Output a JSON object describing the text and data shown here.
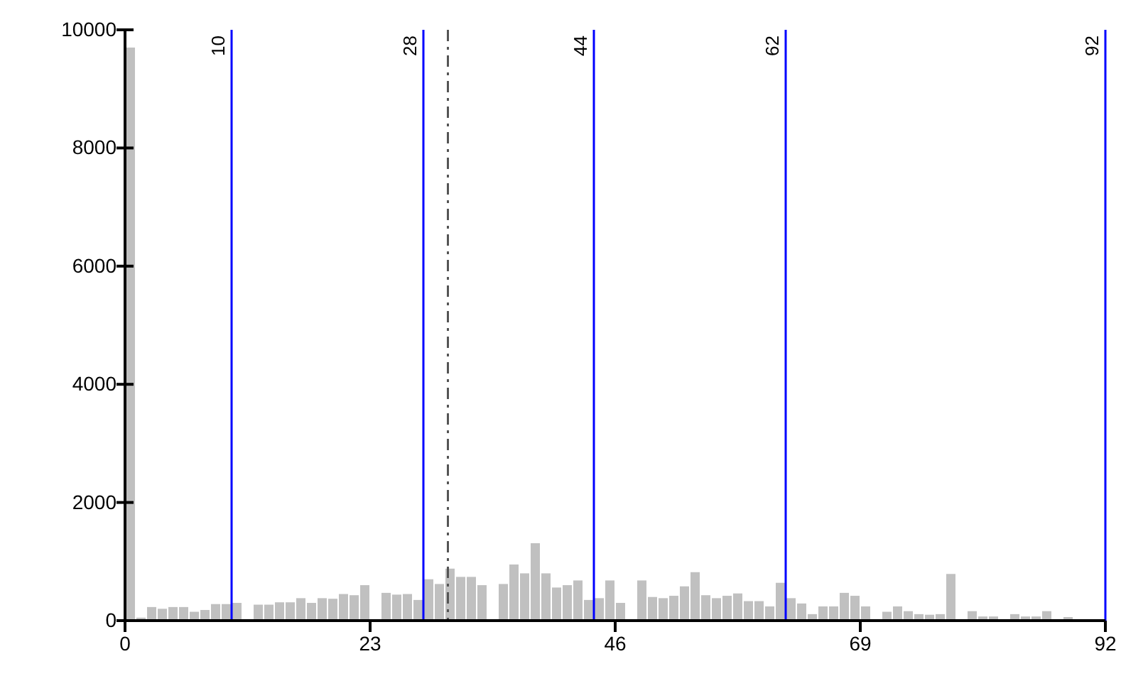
{
  "chart_data": {
    "type": "histogram",
    "color": "#c0c0c0",
    "bins": [
      0,
      1,
      2,
      3,
      4,
      5,
      6,
      7,
      8,
      9,
      10,
      11,
      12,
      13,
      14,
      15,
      16,
      17,
      18,
      19,
      20,
      21,
      22,
      23,
      24,
      25,
      26,
      27,
      28,
      29,
      30,
      31,
      32,
      33,
      34,
      35,
      36,
      37,
      38,
      39,
      40,
      41,
      42,
      43,
      44,
      45,
      46,
      47,
      48,
      49,
      50,
      51,
      52,
      53,
      54,
      55,
      56,
      57,
      58,
      59,
      60,
      61,
      62,
      63,
      64,
      65,
      66,
      67,
      68,
      69,
      70,
      71,
      72,
      73,
      74,
      75,
      76,
      77,
      78,
      79,
      80,
      81,
      82,
      83,
      84,
      85,
      86,
      87,
      88,
      89,
      90,
      91,
      92
    ],
    "values": [
      9700,
      50,
      230,
      200,
      230,
      230,
      150,
      180,
      280,
      280,
      300,
      0,
      270,
      270,
      310,
      310,
      380,
      300,
      380,
      370,
      450,
      430,
      600,
      0,
      470,
      440,
      450,
      350,
      700,
      620,
      880,
      740,
      740,
      600,
      0,
      620,
      950,
      800,
      1310,
      800,
      560,
      600,
      680,
      350,
      380,
      680,
      300,
      0,
      680,
      400,
      380,
      420,
      580,
      820,
      430,
      380,
      420,
      460,
      330,
      330,
      240,
      640,
      380,
      290,
      110,
      240,
      240,
      470,
      420,
      240,
      0,
      150,
      240,
      160,
      110,
      100,
      110,
      790,
      0,
      160,
      70,
      70,
      0,
      110,
      70,
      70,
      160,
      0,
      60,
      0,
      0,
      0
    ],
    "xlim": [
      0,
      92
    ],
    "xticks": [
      0,
      23,
      46,
      69,
      92
    ],
    "ylim": [
      0,
      10000
    ],
    "yticks": [
      0,
      2000,
      4000,
      6000,
      8000,
      10000
    ],
    "ref_lines": [
      {
        "axis": "x",
        "value": 10,
        "label": "10",
        "color": "#0000ff"
      },
      {
        "axis": "x",
        "value": 28,
        "label": "28",
        "color": "#0000ff"
      },
      {
        "axis": "x",
        "value": 30.3,
        "label": null,
        "color": "#555555",
        "line_style": "dashed"
      },
      {
        "axis": "x",
        "value": 44,
        "label": "44",
        "color": "#0000ff"
      },
      {
        "axis": "x",
        "value": 62,
        "label": "62",
        "color": "#0000ff"
      },
      {
        "axis": "x",
        "value": 92,
        "label": "92",
        "color": "#0000ff"
      }
    ]
  }
}
